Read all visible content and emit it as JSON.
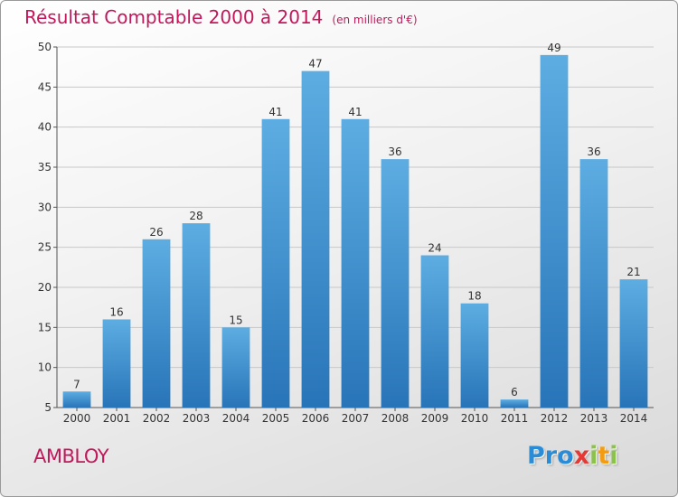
{
  "header": {
    "title": "Résultat Comptable 2000 à 2014",
    "subtitle": "(en milliers d'€)"
  },
  "footer": {
    "town": "AMBLOY",
    "brand": "Proxiti",
    "brand_letters": [
      "P",
      "r",
      "o",
      "x",
      "i",
      "t",
      "i"
    ]
  },
  "colors": {
    "title": "#c2185b",
    "bar_top": "#5dade2",
    "bar_bottom": "#2874b8"
  },
  "chart_data": {
    "type": "bar",
    "title": "Résultat Comptable 2000 à 2014",
    "subtitle": "(en milliers d'€)",
    "categories": [
      "2000",
      "2001",
      "2002",
      "2003",
      "2004",
      "2005",
      "2006",
      "2007",
      "2008",
      "2009",
      "2010",
      "2011",
      "2012",
      "2013",
      "2014"
    ],
    "values": [
      7,
      16,
      26,
      28,
      15,
      41,
      47,
      41,
      36,
      24,
      18,
      6,
      49,
      36,
      21
    ],
    "ylim": [
      5,
      50
    ],
    "yticks": [
      5,
      10,
      15,
      20,
      25,
      30,
      35,
      40,
      45,
      50
    ],
    "grid": true,
    "data_labels": true
  }
}
